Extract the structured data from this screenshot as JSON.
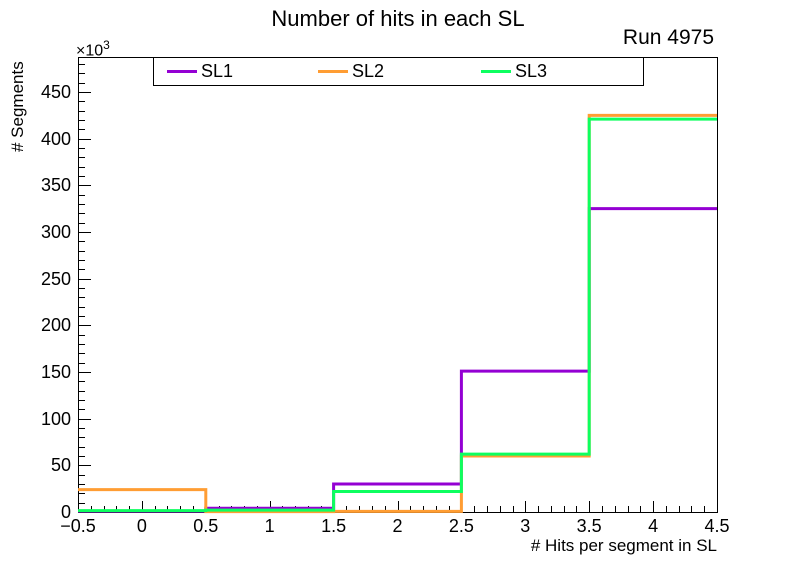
{
  "title": "Number of hits in each SL",
  "run_label": "Run 4975",
  "y_axis": {
    "multiplier_base": "×10",
    "multiplier_exp": "3"
  },
  "chart_data": {
    "type": "step-histogram",
    "title": "Number of hits in each SL",
    "annotation": "Run 4975",
    "xlabel": "# Hits per segment in SL",
    "ylabel": "# Segments",
    "y_unit_multiplier": "×10³",
    "xlim": [
      -0.5,
      4.5
    ],
    "ylim": [
      0,
      487.5
    ],
    "x_bin_edges": [
      -0.5,
      0.5,
      1.5,
      2.5,
      3.5,
      4.5
    ],
    "series": [
      {
        "name": "SL1",
        "color": "#9400d3",
        "values_k": [
          1,
          4,
          30,
          151,
          325
        ]
      },
      {
        "name": "SL2",
        "color": "#ff9d33",
        "values_k": [
          24,
          0.4,
          0.7,
          60,
          425
        ]
      },
      {
        "name": "SL3",
        "color": "#0dff5f",
        "values_k": [
          1.5,
          2,
          22,
          62,
          421
        ]
      }
    ],
    "x_major_ticks": [
      -0.5,
      0,
      0.5,
      1,
      1.5,
      2,
      2.5,
      3,
      3.5,
      4,
      4.5
    ],
    "x_tick_labels": [
      "−0.5",
      "0",
      "0.5",
      "1",
      "1.5",
      "2",
      "2.5",
      "3",
      "3.5",
      "4",
      "4.5"
    ],
    "x_minor_step": 0.1,
    "y_major_ticks": [
      0,
      50,
      100,
      150,
      200,
      250,
      300,
      350,
      400,
      450
    ],
    "y_tick_labels": [
      "0",
      "50",
      "100",
      "150",
      "200",
      "250",
      "300",
      "350",
      "400",
      "450"
    ],
    "y_minor_step": 10,
    "grid": false,
    "legend_position": "top",
    "legend": [
      "SL1",
      "SL2",
      "SL3"
    ]
  }
}
